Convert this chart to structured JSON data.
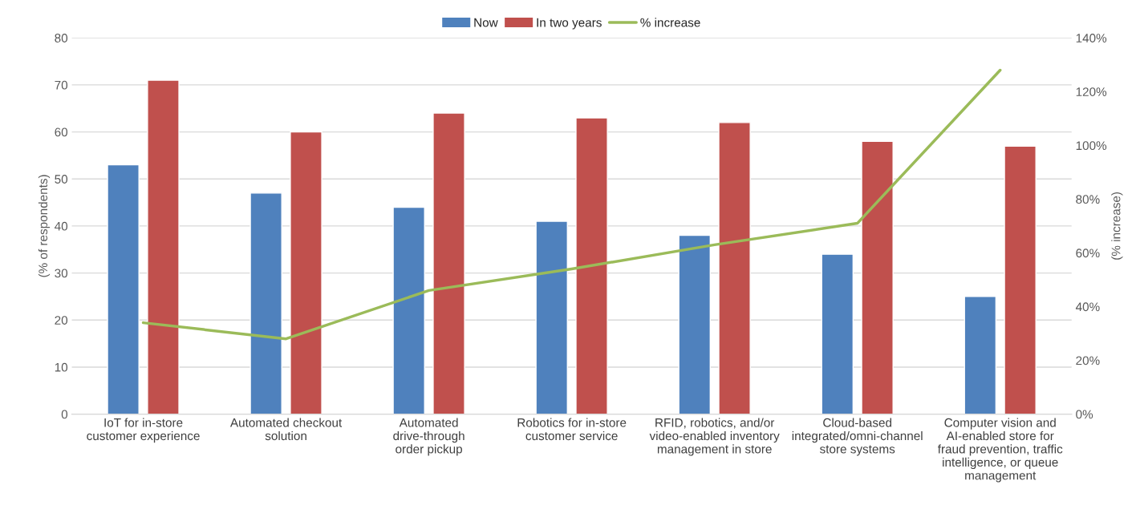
{
  "chart_data": {
    "type": "bar",
    "categories": [
      "IoT for in-store\ncustomer experience",
      "Automated checkout\nsolution",
      "Automated\ndrive-through\norder pickup",
      "Robotics for in-store\ncustomer service",
      "RFID, robotics, and/or\nvideo-enabled inventory\nmanagement in store",
      "Cloud-based\nintegrated/omni-channel\nstore systems",
      "Computer vision and\nAI-enabled store for\nfraud prevention, traffic\nintelligence, or queue\nmanagement"
    ],
    "series": [
      {
        "name": "Now",
        "color": "#4f81bd",
        "values": [
          53,
          47,
          44,
          41,
          38,
          34,
          25
        ]
      },
      {
        "name": "In two years",
        "color": "#c0504d",
        "values": [
          71,
          60,
          64,
          63,
          62,
          58,
          57
        ]
      },
      {
        "name": "% increase",
        "type": "line",
        "axis": "y2",
        "color": "#9bbb59",
        "values": [
          34,
          28,
          46,
          54,
          63,
          71,
          128
        ]
      }
    ],
    "ylabel": "(% of respondents)",
    "y2label": "(% increase)",
    "ylim": [
      0,
      80
    ],
    "yticks": [
      0,
      10,
      20,
      30,
      40,
      50,
      60,
      70,
      80
    ],
    "y2lim": [
      0,
      140
    ],
    "y2ticks": [
      {
        "value": 0,
        "label": "0%"
      },
      {
        "value": 20,
        "label": "20%"
      },
      {
        "value": 40,
        "label": "40%"
      },
      {
        "value": 60,
        "label": "60%"
      },
      {
        "value": 80,
        "label": "80%"
      },
      {
        "value": 100,
        "label": "100%"
      },
      {
        "value": 120,
        "label": "120%"
      },
      {
        "value": 140,
        "label": "140%"
      }
    ],
    "grid": "y",
    "legend": "top",
    "marker": "none",
    "line_style": "solid"
  }
}
